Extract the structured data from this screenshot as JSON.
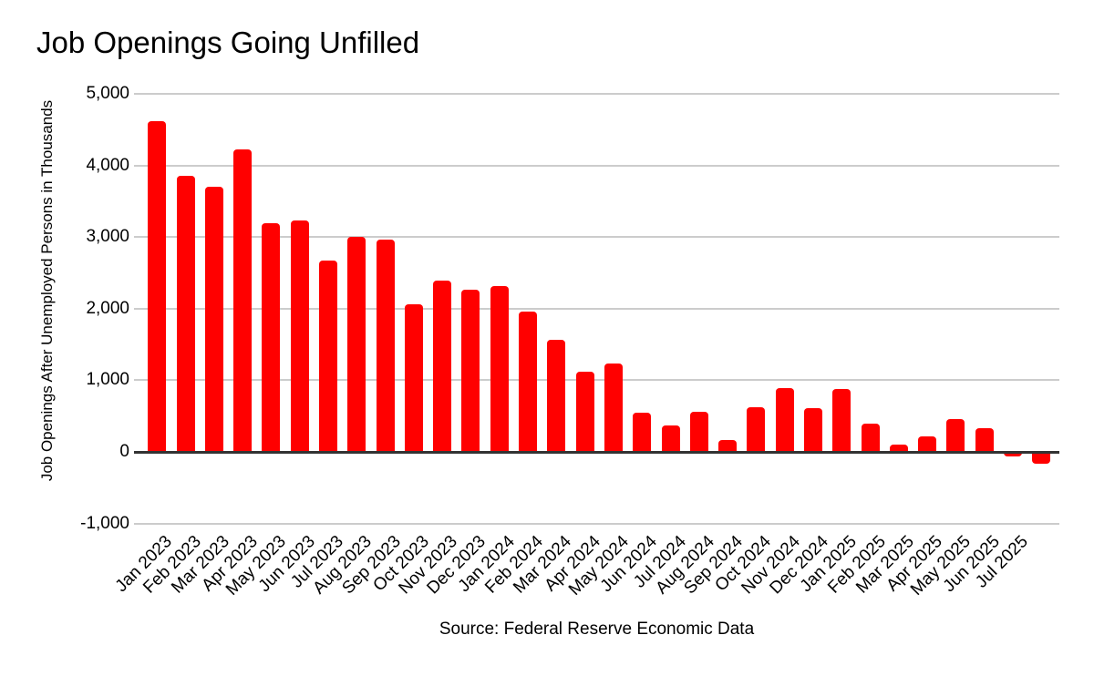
{
  "page": {
    "title": "Job Openings Going Unfilled",
    "source_note": "Source: Federal Reserve Economic Data"
  },
  "chart_data": {
    "type": "bar",
    "title": "Job Openings Going Unfilled",
    "ylabel": "Job Openings After Unemployed Persons in Thousands",
    "xlabel": "",
    "source": "Source: Federal Reserve Economic Data",
    "categories": [
      "Jan 2023",
      "Feb 2023",
      "Mar 2023",
      "Apr 2023",
      "May 2023",
      "Jun 2023",
      "Jul 2023",
      "Aug 2023",
      "Sep 2023",
      "Oct 2023",
      "Nov 2023",
      "Dec 2023",
      "Jan 2024",
      "Feb 2024",
      "Mar 2024",
      "Apr 2024",
      "May 2024",
      "Jun 2024",
      "Jul 2024",
      "Aug 2024",
      "Sep 2024",
      "Oct 2024",
      "Nov 2024",
      "Dec 2024",
      "Jan 2025",
      "Feb 2025",
      "Mar 2025",
      "Apr 2025",
      "May 2025",
      "Jun 2025",
      "Jul 2025",
      ""
    ],
    "values": [
      4620,
      3860,
      3710,
      4220,
      3200,
      3230,
      2670,
      3010,
      2960,
      2060,
      2390,
      2260,
      2320,
      1960,
      1570,
      1120,
      1240,
      550,
      370,
      560,
      170,
      630,
      890,
      610,
      880,
      400,
      100,
      220,
      460,
      330,
      -60,
      -170
    ],
    "y_ticks": [
      5000,
      4000,
      3000,
      2000,
      1000,
      0,
      -1000
    ],
    "ylim": [
      -1000,
      5000
    ],
    "bar_color": "#ff0000",
    "gridline_color": "#cccccc",
    "baseline_color": "#333333",
    "grid": true,
    "legend": "none",
    "x_tick_rotation": -45
  }
}
